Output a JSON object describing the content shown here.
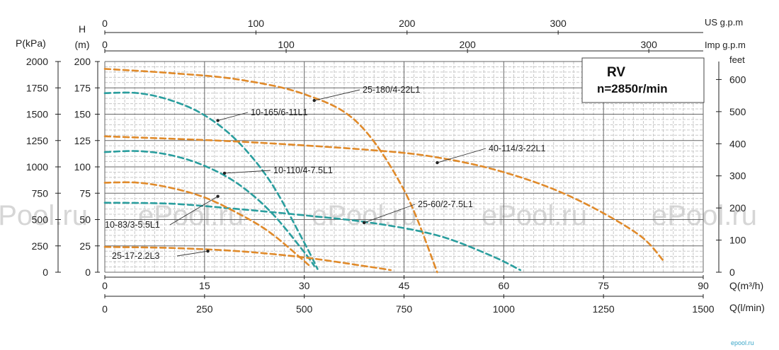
{
  "chart_data": {
    "type": "line",
    "title": "RV",
    "subtitle": "n=2850r/min",
    "axes": {
      "q_m3h": {
        "label": "Q(m³/h)",
        "range": [
          0,
          90
        ],
        "ticks": [
          "0",
          "15",
          "30",
          "45",
          "60",
          "75",
          "90"
        ]
      },
      "q_lmin": {
        "label": "Q(l/min)",
        "range": [
          0,
          1500
        ],
        "ticks": [
          "0",
          "250",
          "500",
          "750",
          "1000",
          "1250",
          "1500"
        ]
      },
      "us_gpm": {
        "label": "US g.p.m",
        "range": [
          0,
          396
        ],
        "ticks": [
          "0",
          "100",
          "200",
          "300"
        ]
      },
      "imp_gpm": {
        "label": "Imp g.p.m",
        "range": [
          0,
          330
        ],
        "ticks": [
          "0",
          "100",
          "200",
          "300"
        ]
      },
      "head_m": {
        "label": "H\n(m)",
        "range": [
          0,
          200
        ],
        "ticks": [
          "0",
          "25",
          "50",
          "75",
          "100",
          "125",
          "150",
          "175",
          "200"
        ]
      },
      "p_kpa": {
        "label": "P(kPa)",
        "range": [
          0,
          2000
        ],
        "ticks": [
          "0",
          "250",
          "500",
          "750",
          "1000",
          "1250",
          "1500",
          "1750",
          "2000"
        ]
      },
      "feet": {
        "label": "feet",
        "range": [
          0,
          656
        ],
        "ticks": [
          "0",
          "100",
          "200",
          "300",
          "400",
          "500",
          "600"
        ]
      }
    },
    "grid": true,
    "watermark": "ePool.ru",
    "brand": "epool.ru",
    "colors": {
      "orange": "#e08a2a",
      "teal": "#2a9e9e",
      "grid": "#9a9a9a",
      "grid_minor": "#c8c8c8"
    },
    "series": [
      {
        "name": "25-180/4-22L1",
        "color": "orange",
        "x": [
          0,
          10,
          20,
          30,
          38,
          45,
          50
        ],
        "y": [
          193,
          189,
          183,
          169,
          142,
          78,
          0
        ]
      },
      {
        "name": "10-165/6-11L1",
        "color": "teal",
        "x": [
          0,
          5,
          10,
          15,
          20,
          25,
          30,
          32
        ],
        "y": [
          170,
          170,
          163,
          149,
          124,
          85,
          28,
          3
        ]
      },
      {
        "name": "40-114/3-22L1",
        "color": "orange",
        "x": [
          0,
          20,
          40,
          50,
          60,
          70,
          80,
          84
        ],
        "y": [
          129,
          124,
          116,
          109,
          95,
          72,
          37,
          11
        ]
      },
      {
        "name": "10-110/4-7.5L1",
        "color": "teal",
        "x": [
          0,
          5,
          10,
          15,
          20,
          25,
          30,
          31.5
        ],
        "y": [
          114,
          115,
          111,
          101,
          84,
          57,
          19,
          6
        ]
      },
      {
        "name": "25-60/2-7.5L1",
        "color": "teal",
        "x": [
          0,
          10,
          20,
          30,
          40,
          50,
          58,
          62.5
        ],
        "y": [
          66,
          65,
          60,
          54,
          47,
          35,
          16,
          2
        ]
      },
      {
        "name": "10-83/3-5.5L1",
        "color": "orange",
        "x": [
          0,
          5,
          10,
          15,
          20,
          25,
          31
        ],
        "y": [
          85,
          85,
          80,
          71,
          56,
          37,
          5
        ]
      },
      {
        "name": "25-17-2.2L3",
        "color": "orange",
        "x": [
          0,
          10,
          20,
          30,
          40,
          43
        ],
        "y": [
          24,
          23,
          20,
          14,
          5,
          2
        ]
      }
    ],
    "labels": [
      {
        "series": "25-180/4-22L1",
        "text": "25-180/4-22L1",
        "mark": [
          31.5,
          163
        ]
      },
      {
        "series": "10-165/6-11L1",
        "text": "10-165/6-11L1",
        "mark": [
          17,
          144
        ]
      },
      {
        "series": "40-114/3-22L1",
        "text": "40-114/3-22L1",
        "mark": [
          50,
          104
        ]
      },
      {
        "series": "10-110/4-7.5L1",
        "text": "10-110/4-7.5L1",
        "mark": [
          18,
          94
        ]
      },
      {
        "series": "25-60/2-7.5L1",
        "text": "25-60/2-7.5L1",
        "mark": [
          39,
          47
        ]
      },
      {
        "series": "10-83/3-5.5L1",
        "text": "10-83/3-5.5L1",
        "mark": [
          17,
          72
        ]
      },
      {
        "series": "25-17-2.2L3",
        "text": "25-17-2.2L3",
        "mark": [
          15.5,
          20
        ]
      }
    ]
  }
}
